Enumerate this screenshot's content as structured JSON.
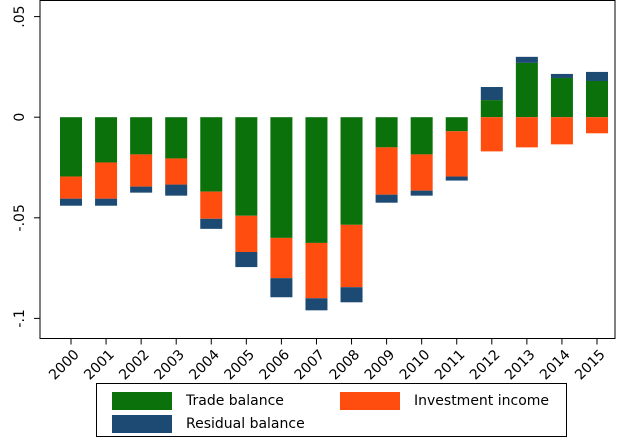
{
  "chart_data": {
    "type": "stacked_bar",
    "categories": [
      "2000",
      "2001",
      "2002",
      "2003",
      "2004",
      "2005",
      "2006",
      "2007",
      "2008",
      "2009",
      "2010",
      "2011",
      "2012",
      "2013",
      "2014",
      "2015"
    ],
    "series": [
      {
        "name": "Trade balance",
        "color": "#0b720b",
        "values": [
          -0.0295,
          -0.0225,
          -0.0185,
          -0.0205,
          -0.037,
          -0.049,
          -0.06,
          -0.0625,
          -0.0535,
          -0.015,
          -0.0185,
          -0.007,
          0.0085,
          0.027,
          0.0195,
          0.018
        ]
      },
      {
        "name": "Investment income",
        "color": "#ff4d10",
        "values": [
          -0.011,
          -0.018,
          -0.016,
          -0.013,
          -0.0135,
          -0.018,
          -0.02,
          -0.0275,
          -0.031,
          -0.0235,
          -0.018,
          -0.0225,
          -0.017,
          -0.015,
          -0.0135,
          -0.008
        ]
      },
      {
        "name": "Residual balance",
        "color": "#1c4a72",
        "values": [
          -0.0035,
          -0.0035,
          -0.003,
          -0.0055,
          -0.005,
          -0.0075,
          -0.0095,
          -0.006,
          -0.0075,
          -0.004,
          -0.0025,
          -0.002,
          0.0065,
          0.003,
          0.002,
          0.0045
        ]
      }
    ],
    "ylim": [
      -0.11,
      0.058
    ],
    "yticks": [
      {
        "value": 0.05,
        "label": ".05"
      },
      0,
      {
        "value": -0.05,
        "label": "-.05"
      },
      {
        "value": -0.1,
        "label": "-.1"
      }
    ]
  }
}
